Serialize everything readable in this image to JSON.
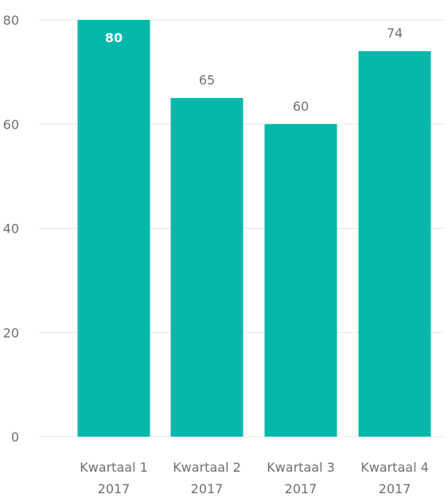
{
  "chart_data": {
    "type": "bar",
    "title": "",
    "xlabel": "",
    "ylabel": "",
    "categories": [
      [
        "Kwartaal 1",
        "2017"
      ],
      [
        "Kwartaal 2",
        "2017"
      ],
      [
        "Kwartaal 3",
        "2017"
      ],
      [
        "Kwartaal 4",
        "2017"
      ]
    ],
    "values": [
      80,
      65,
      60,
      74
    ],
    "data_labels": [
      "80",
      "65",
      "60",
      "74"
    ],
    "y_ticks": [
      0,
      20,
      40,
      60,
      80
    ],
    "ylim": [
      0,
      80
    ],
    "grid": true,
    "legend": "none",
    "colors": {
      "bar": "#01B8AA",
      "grid": "#E9E9E9",
      "tick_text": "#6F6F6F",
      "label_inside": "#FFFFFF",
      "label_outside": "#6F6F6F"
    }
  }
}
